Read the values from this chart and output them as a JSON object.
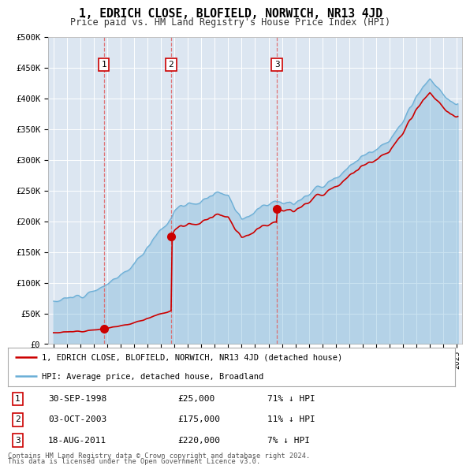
{
  "title": "1, EDRICH CLOSE, BLOFIELD, NORWICH, NR13 4JD",
  "subtitle": "Price paid vs. HM Land Registry's House Price Index (HPI)",
  "sales": [
    {
      "date_num": 1998.75,
      "price": 25000,
      "label": "1",
      "date_str": "30-SEP-1998",
      "pct": "71% ↓ HPI"
    },
    {
      "date_num": 2003.75,
      "price": 175000,
      "label": "2",
      "date_str": "03-OCT-2003",
      "pct": "11% ↓ HPI"
    },
    {
      "date_num": 2011.62,
      "price": 220000,
      "label": "3",
      "date_str": "18-AUG-2011",
      "pct": "7% ↓ HPI"
    }
  ],
  "hpi_color": "#6aaed6",
  "sale_color": "#cc0000",
  "vline_color": "#e06060",
  "plot_bg": "#dce6f1",
  "ylim": [
    0,
    500000
  ],
  "xlim": [
    1994.6,
    2025.4
  ],
  "legend_line1": "1, EDRICH CLOSE, BLOFIELD, NORWICH, NR13 4JD (detached house)",
  "legend_line2": "HPI: Average price, detached house, Broadland",
  "footer1": "Contains HM Land Registry data © Crown copyright and database right 2024.",
  "footer2": "This data is licensed under the Open Government Licence v3.0.",
  "table_rows": [
    {
      "num": "1",
      "date": "30-SEP-1998",
      "price": "£25,000",
      "pct": "71% ↓ HPI"
    },
    {
      "num": "2",
      "date": "03-OCT-2003",
      "price": "£175,000",
      "pct": "11% ↓ HPI"
    },
    {
      "num": "3",
      "date": "18-AUG-2011",
      "price": "£220,000",
      "pct": "7% ↓ HPI"
    }
  ],
  "hpi_data": {
    "1995.0": 70000,
    "1995.5": 72000,
    "1996.0": 74000,
    "1996.5": 76500,
    "1997.0": 80000,
    "1997.5": 84000,
    "1998.0": 88000,
    "1998.5": 91000,
    "1999.0": 98000,
    "1999.5": 104000,
    "2000.0": 112000,
    "2000.5": 120000,
    "2001.0": 130000,
    "2001.5": 145000,
    "2002.0": 158000,
    "2002.5": 175000,
    "2003.0": 188000,
    "2003.5": 198000,
    "2004.0": 215000,
    "2004.5": 225000,
    "2005.0": 228000,
    "2005.5": 230000,
    "2006.0": 232000,
    "2006.5": 238000,
    "2007.0": 245000,
    "2007.5": 248000,
    "2008.0": 242000,
    "2008.5": 222000,
    "2009.0": 205000,
    "2009.5": 208000,
    "2010.0": 218000,
    "2010.5": 225000,
    "2011.0": 230000,
    "2011.5": 235000,
    "2012.0": 230000,
    "2012.5": 228000,
    "2013.0": 232000,
    "2013.5": 238000,
    "2014.0": 245000,
    "2014.5": 252000,
    "2015.0": 258000,
    "2015.5": 265000,
    "2016.0": 272000,
    "2016.5": 280000,
    "2017.0": 290000,
    "2017.5": 298000,
    "2018.0": 305000,
    "2018.5": 312000,
    "2019.0": 318000,
    "2019.5": 325000,
    "2020.0": 330000,
    "2020.5": 345000,
    "2021.0": 362000,
    "2021.5": 385000,
    "2022.0": 400000,
    "2022.5": 420000,
    "2023.0": 430000,
    "2023.5": 418000,
    "2024.0": 405000,
    "2024.5": 395000,
    "2025.0": 390000
  }
}
